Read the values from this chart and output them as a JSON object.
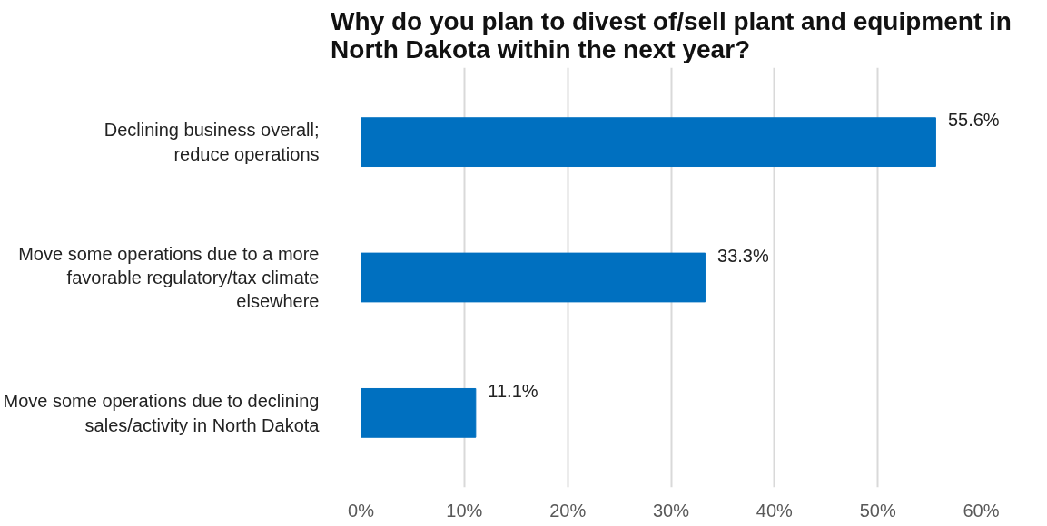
{
  "chart_data": {
    "type": "bar",
    "orientation": "horizontal",
    "title": "Why do you plan to divest of/sell plant and equipment in\nNorth Dakota within the next year?",
    "categories": [
      "Declining business overall;\nreduce operations",
      "Move some operations due to a more\nfavorable regulatory/tax climate\nelsewhere",
      "Move some operations due to declining\nsales/activity in North Dakota"
    ],
    "values": [
      55.6,
      33.3,
      11.1
    ],
    "value_labels": [
      "55.6%",
      "33.3%",
      "11.1%"
    ],
    "color": "#0070c0",
    "xlim": [
      0,
      60
    ],
    "xticks": [
      {
        "value": 0,
        "label": "0%"
      },
      {
        "value": 10,
        "label": "10%"
      },
      {
        "value": 20,
        "label": "20%"
      },
      {
        "value": 30,
        "label": "30%"
      },
      {
        "value": 40,
        "label": "40%"
      },
      {
        "value": 50,
        "label": "50%"
      },
      {
        "value": 60,
        "label": "60%"
      }
    ],
    "grid": "x"
  }
}
